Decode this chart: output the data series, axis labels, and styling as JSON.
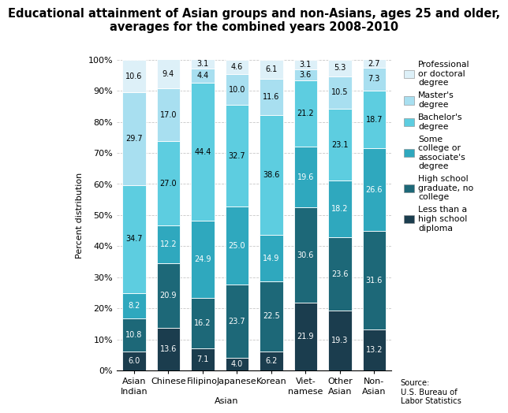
{
  "title": "Educational attainment of Asian groups and non-Asians, ages 25 and older,\naverages for the combined years 2008-2010",
  "categories": [
    "Asian\nIndian",
    "Chinese",
    "Filipino",
    "Japanese",
    "Korean",
    "Viet-\nnamese",
    "Other\nAsian",
    "Non-\nAsian"
  ],
  "ylabel": "Percent distribution",
  "source": "Source:\nU.S. Bureau of\nLabor Statistics",
  "segments": [
    {
      "label": "Less than a\nhigh school\ndiploma",
      "color": "#1b3d4e",
      "values": [
        6.0,
        13.6,
        7.1,
        4.0,
        6.2,
        21.9,
        19.3,
        13.2
      ],
      "text_color": "white"
    },
    {
      "label": "High school\ngraduate, no\ncollege",
      "color": "#1d6878",
      "values": [
        10.8,
        20.9,
        16.2,
        23.7,
        22.5,
        30.6,
        23.6,
        31.6
      ],
      "text_color": "white"
    },
    {
      "label": "Some\ncollege or\nassociate's\ndegree",
      "color": "#2fa8be",
      "values": [
        8.2,
        12.2,
        24.9,
        25.0,
        14.9,
        19.6,
        18.2,
        26.6
      ],
      "text_color": "white"
    },
    {
      "label": "Bachelor's\ndegree",
      "color": "#5dcde0",
      "values": [
        34.7,
        27.0,
        44.4,
        32.7,
        38.6,
        21.2,
        23.1,
        18.7
      ],
      "text_color": "black"
    },
    {
      "label": "Master's\ndegree",
      "color": "#a8dff0",
      "values": [
        29.7,
        17.0,
        4.4,
        10.0,
        11.6,
        3.6,
        10.5,
        7.3
      ],
      "text_color": "black"
    },
    {
      "label": "Professional\nor doctoral\ndegree",
      "color": "#ddf0f8",
      "values": [
        10.6,
        9.4,
        3.1,
        4.6,
        6.1,
        3.1,
        5.3,
        2.7
      ],
      "text_color": "black"
    }
  ],
  "ylim": [
    0,
    100
  ],
  "yticks": [
    0,
    10,
    20,
    30,
    40,
    50,
    60,
    70,
    80,
    90,
    100
  ],
  "yticklabels": [
    "0%",
    "10%",
    "20%",
    "30%",
    "40%",
    "50%",
    "60%",
    "70%",
    "80%",
    "90%",
    "100%"
  ],
  "background_color": "#ffffff",
  "grid_color": "#c8c8c8",
  "title_fontsize": 10.5,
  "tick_fontsize": 8,
  "legend_fontsize": 7.8,
  "value_fontsize": 7.0
}
